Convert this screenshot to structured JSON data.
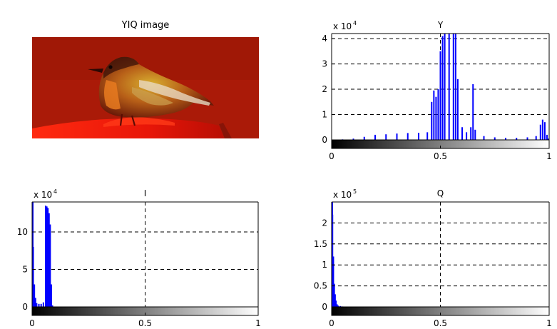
{
  "image_panel": {
    "title": "YIQ image"
  },
  "chart_data": [
    {
      "type": "bar",
      "title": "Y",
      "multiplier_label": "x 10",
      "multiplier_exponent": "4",
      "ylim": [
        0,
        4.2
      ],
      "yticks": [
        0,
        1,
        2,
        3,
        4
      ],
      "ytick_labels": [
        "0",
        "1",
        "2",
        "3",
        "4"
      ],
      "xlim": [
        0,
        1
      ],
      "xticks": [
        0,
        0.5,
        1
      ],
      "xtick_labels": [
        "0",
        "0.5",
        "1"
      ],
      "grid": true,
      "bar_color": "#0000ff",
      "x": [
        0.0,
        0.05,
        0.1,
        0.15,
        0.2,
        0.25,
        0.3,
        0.35,
        0.4,
        0.44,
        0.46,
        0.47,
        0.48,
        0.49,
        0.5,
        0.51,
        0.52,
        0.54,
        0.56,
        0.57,
        0.58,
        0.6,
        0.62,
        0.64,
        0.65,
        0.66,
        0.7,
        0.75,
        0.8,
        0.85,
        0.9,
        0.94,
        0.96,
        0.97,
        0.98,
        0.99,
        1.0
      ],
      "values": [
        0.0,
        0.02,
        0.05,
        0.12,
        0.2,
        0.22,
        0.25,
        0.27,
        0.28,
        0.3,
        1.5,
        1.95,
        1.7,
        2.0,
        3.5,
        4.1,
        4.2,
        4.2,
        4.2,
        4.2,
        2.4,
        0.5,
        0.3,
        0.5,
        2.2,
        0.4,
        0.15,
        0.1,
        0.08,
        0.08,
        0.1,
        0.15,
        0.6,
        0.8,
        0.7,
        0.2,
        0.05
      ]
    },
    {
      "type": "bar",
      "title": "I",
      "multiplier_label": "x 10",
      "multiplier_exponent": "4",
      "ylim": [
        0,
        14
      ],
      "yticks": [
        0,
        5,
        10
      ],
      "ytick_labels": [
        "0",
        "5",
        "10"
      ],
      "xlim": [
        0,
        1
      ],
      "xticks": [
        0,
        0.5,
        1
      ],
      "xtick_labels": [
        "0",
        "0.5",
        "1"
      ],
      "grid": true,
      "bar_color": "#0000ff",
      "x": [
        0.0,
        0.005,
        0.01,
        0.015,
        0.02,
        0.03,
        0.04,
        0.05,
        0.06,
        0.065,
        0.07,
        0.075,
        0.08,
        0.085,
        0.09
      ],
      "values": [
        14,
        8,
        3,
        1.2,
        0.5,
        0.4,
        0.4,
        0.6,
        13.5,
        13.4,
        13.2,
        12.5,
        11.0,
        3.0,
        0.2
      ]
    },
    {
      "type": "bar",
      "title": "Q",
      "multiplier_label": "x 10",
      "multiplier_exponent": "5",
      "ylim": [
        0,
        2.5
      ],
      "yticks": [
        0,
        0.5,
        1,
        1.5,
        2
      ],
      "ytick_labels": [
        "0",
        "0.5",
        "1",
        "1.5",
        "2"
      ],
      "xlim": [
        0,
        1
      ],
      "xticks": [
        0,
        0.5,
        1
      ],
      "xtick_labels": [
        "0",
        "0.5",
        "1"
      ],
      "grid": true,
      "bar_color": "#0000ff",
      "x": [
        0.0,
        0.004,
        0.008,
        0.012,
        0.016,
        0.02,
        0.025,
        0.03,
        0.04,
        0.05
      ],
      "values": [
        2.5,
        2.2,
        1.2,
        0.55,
        0.3,
        0.15,
        0.06,
        0.03,
        0.02,
        0.01
      ]
    }
  ]
}
